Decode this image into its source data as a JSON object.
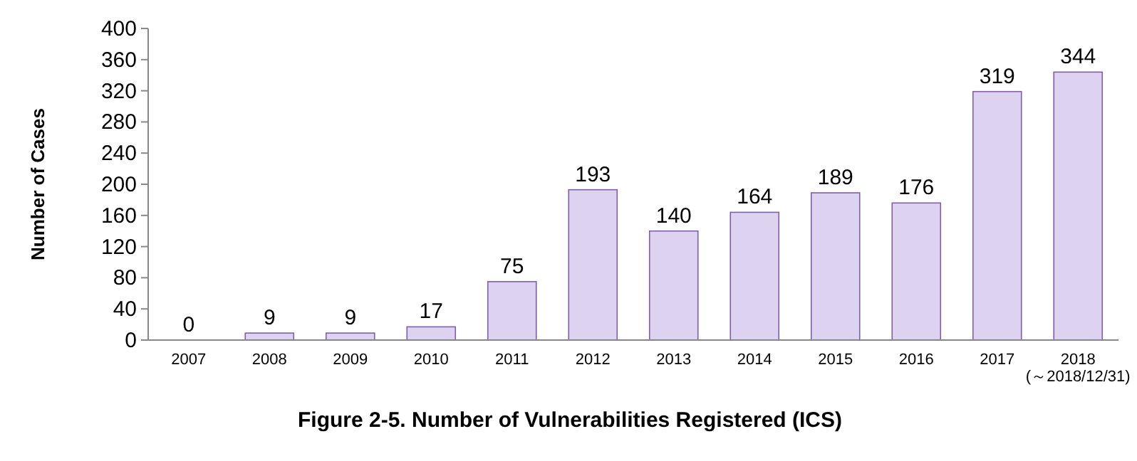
{
  "chart_data": {
    "type": "bar",
    "title": "Figure 2-5. Number of Vulnerabilities Registered (ICS)",
    "ylabel": "Number of Cases",
    "categories": [
      "2007",
      "2008",
      "2009",
      "2010",
      "2011",
      "2012",
      "2013",
      "2014",
      "2015",
      "2016",
      "2017",
      "2018 (～2018/12/31)"
    ],
    "values": [
      0,
      9,
      9,
      17,
      75,
      193,
      140,
      164,
      189,
      176,
      319,
      344
    ],
    "color": "#ddd2f0",
    "ylim": [
      0,
      400
    ],
    "yticks": [
      0,
      40,
      80,
      120,
      160,
      200,
      240,
      280,
      320,
      360,
      400
    ],
    "data_labels": true,
    "grid": false
  }
}
